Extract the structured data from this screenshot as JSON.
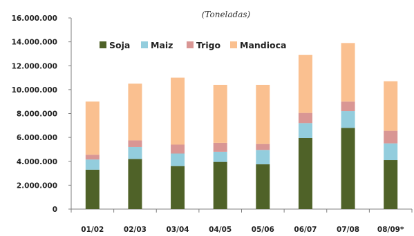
{
  "chart_data": {
    "type": "bar",
    "stacked": true,
    "title": "(Toneladas)",
    "xlabel": "",
    "ylabel": "",
    "categories": [
      "01/02",
      "02/03",
      "03/04",
      "04/05",
      "05/06",
      "06/07",
      "07/08",
      "08/09*"
    ],
    "ylim": [
      0,
      16000000
    ],
    "yticks": [
      0,
      2000000,
      4000000,
      6000000,
      8000000,
      10000000,
      12000000,
      14000000,
      16000000
    ],
    "ytick_labels": [
      "0",
      "2.000.000",
      "4.000.000",
      "6.000.000",
      "8.000.000",
      "10.000.000",
      "12.000.000",
      "14.000.000",
      "16.000.000"
    ],
    "grid": false,
    "legend_position": "top-left",
    "series": [
      {
        "name": "Soja",
        "color": "#4f6228",
        "values": [
          3300000,
          4200000,
          3600000,
          3950000,
          3750000,
          5950000,
          6800000,
          4100000
        ]
      },
      {
        "name": "Maiz",
        "color": "#93cddd",
        "values": [
          850000,
          1000000,
          1050000,
          850000,
          1200000,
          1250000,
          1400000,
          1400000
        ]
      },
      {
        "name": "Trigo",
        "color": "#d99694",
        "values": [
          400000,
          550000,
          750000,
          750000,
          500000,
          850000,
          800000,
          1050000
        ]
      },
      {
        "name": "Mandioca",
        "color": "#fac090",
        "values": [
          4450000,
          4750000,
          5600000,
          4850000,
          4950000,
          4850000,
          4900000,
          4150000
        ]
      }
    ]
  }
}
